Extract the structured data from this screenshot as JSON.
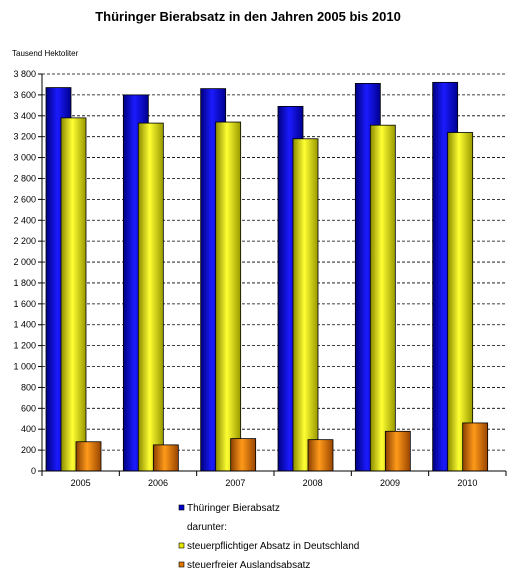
{
  "chart_data": {
    "type": "bar",
    "title": "Thüringer Bierabsatz in den Jahren 2005 bis 2010",
    "ylabel": "Tausend Hektoliter",
    "xlabel": "",
    "ylim": [
      0,
      3800
    ],
    "yticks": [
      0,
      200,
      400,
      600,
      800,
      1000,
      1200,
      1400,
      1600,
      1800,
      2000,
      2200,
      2400,
      2600,
      2800,
      3000,
      3200,
      3400,
      3600,
      3800
    ],
    "ytick_labels": [
      "0",
      "200",
      "400",
      "600",
      "800",
      "1 000",
      "1 200",
      "1 400",
      "1 600",
      "1 800",
      "2 000",
      "2 200",
      "2 400",
      "2 600",
      "2 800",
      "3 000",
      "3 200",
      "3 400",
      "3 600",
      "3 800"
    ],
    "grid": "horizontal, dashed",
    "legend_position": "bottom",
    "categories": [
      "2005",
      "2006",
      "2007",
      "2008",
      "2009",
      "2010"
    ],
    "series": [
      {
        "name": "Thüringer Bierabsatz",
        "color": "#0000cc",
        "values": [
          3670,
          3600,
          3660,
          3490,
          3710,
          3720
        ]
      },
      {
        "name": "steuerpflichtiger Absatz in Deutschland",
        "color": "#e6e600",
        "values": [
          3380,
          3330,
          3340,
          3180,
          3310,
          3240
        ]
      },
      {
        "name": "steuerfreier Auslandsabsatz",
        "color": "#e07800",
        "values": [
          280,
          250,
          310,
          300,
          380,
          460
        ]
      }
    ],
    "legend_note": "darunter:"
  }
}
